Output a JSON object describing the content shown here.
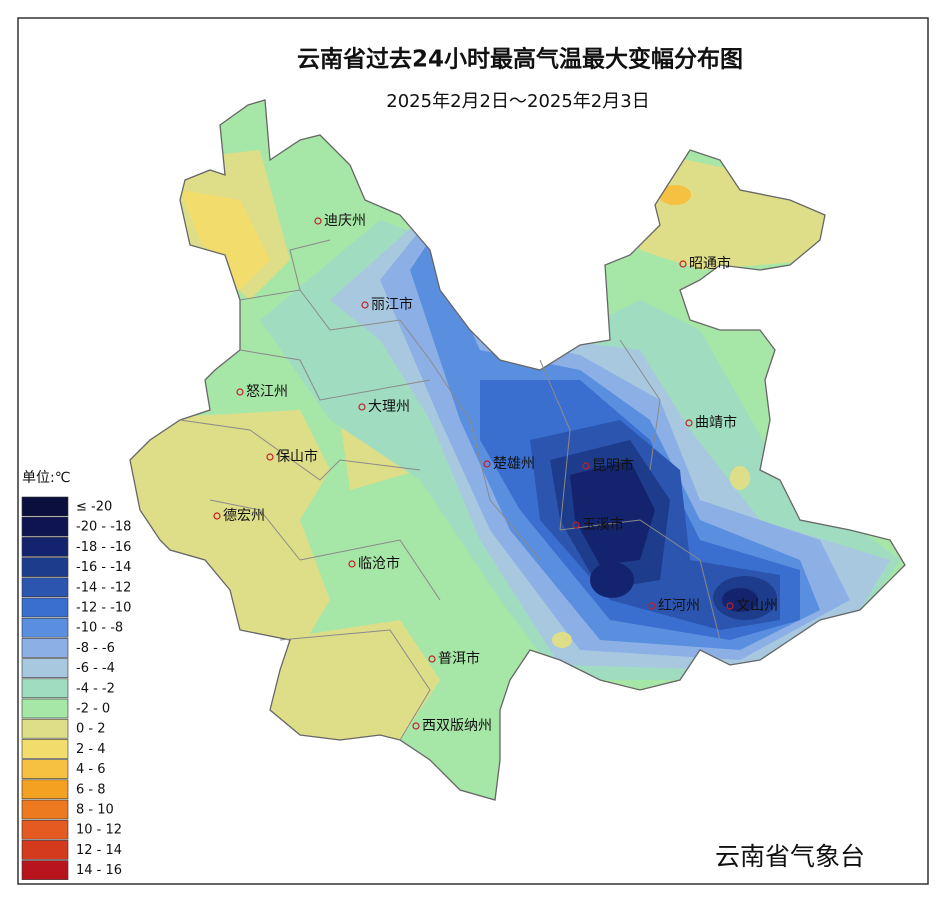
{
  "title": "云南省过去24小时最高气温最大变幅分布图",
  "subtitle": "2025年2月2日～2025年2月3日",
  "legend": {
    "title": "单位:℃",
    "items": [
      {
        "label": "≤ -20",
        "color": "#0b0f3d"
      },
      {
        "label": "-20 - -18",
        "color": "#0d1450"
      },
      {
        "label": "-18 - -16",
        "color": "#14236e"
      },
      {
        "label": "-16 - -14",
        "color": "#1e3c8c"
      },
      {
        "label": "-14 - -12",
        "color": "#2c55b0"
      },
      {
        "label": "-12 - -10",
        "color": "#3a6fd0"
      },
      {
        "label": "-10 - -8",
        "color": "#5a8fe0"
      },
      {
        "label": "-8 - -6",
        "color": "#8cb0e6"
      },
      {
        "label": "-6 - -4",
        "color": "#a8c8e0"
      },
      {
        "label": "-4 - -2",
        "color": "#a0dcc0"
      },
      {
        "label": "-2 - 0",
        "color": "#a6e6a6"
      },
      {
        "label": "0 - 2",
        "color": "#dede88"
      },
      {
        "label": "2 - 4",
        "color": "#f2dc6c"
      },
      {
        "label": "4 - 6",
        "color": "#f6c040"
      },
      {
        "label": "6 - 8",
        "color": "#f4a020"
      },
      {
        "label": "8 - 10",
        "color": "#ee7a20"
      },
      {
        "label": "10 - 12",
        "color": "#e45a20"
      },
      {
        "label": "12 - 14",
        "color": "#d43a1e"
      },
      {
        "label": "14 - 16",
        "color": "#b8141e"
      }
    ]
  },
  "cities": [
    "迪庆州",
    "丽江市",
    "怒江州",
    "大理州",
    "保山市",
    "德宏州",
    "临沧市",
    "普洱市",
    "西双版纳州",
    "楚雄州",
    "昆明市",
    "玉溪市",
    "红河州",
    "文山州",
    "曲靖市",
    "昭通市"
  ],
  "credit": "云南省气象台"
}
